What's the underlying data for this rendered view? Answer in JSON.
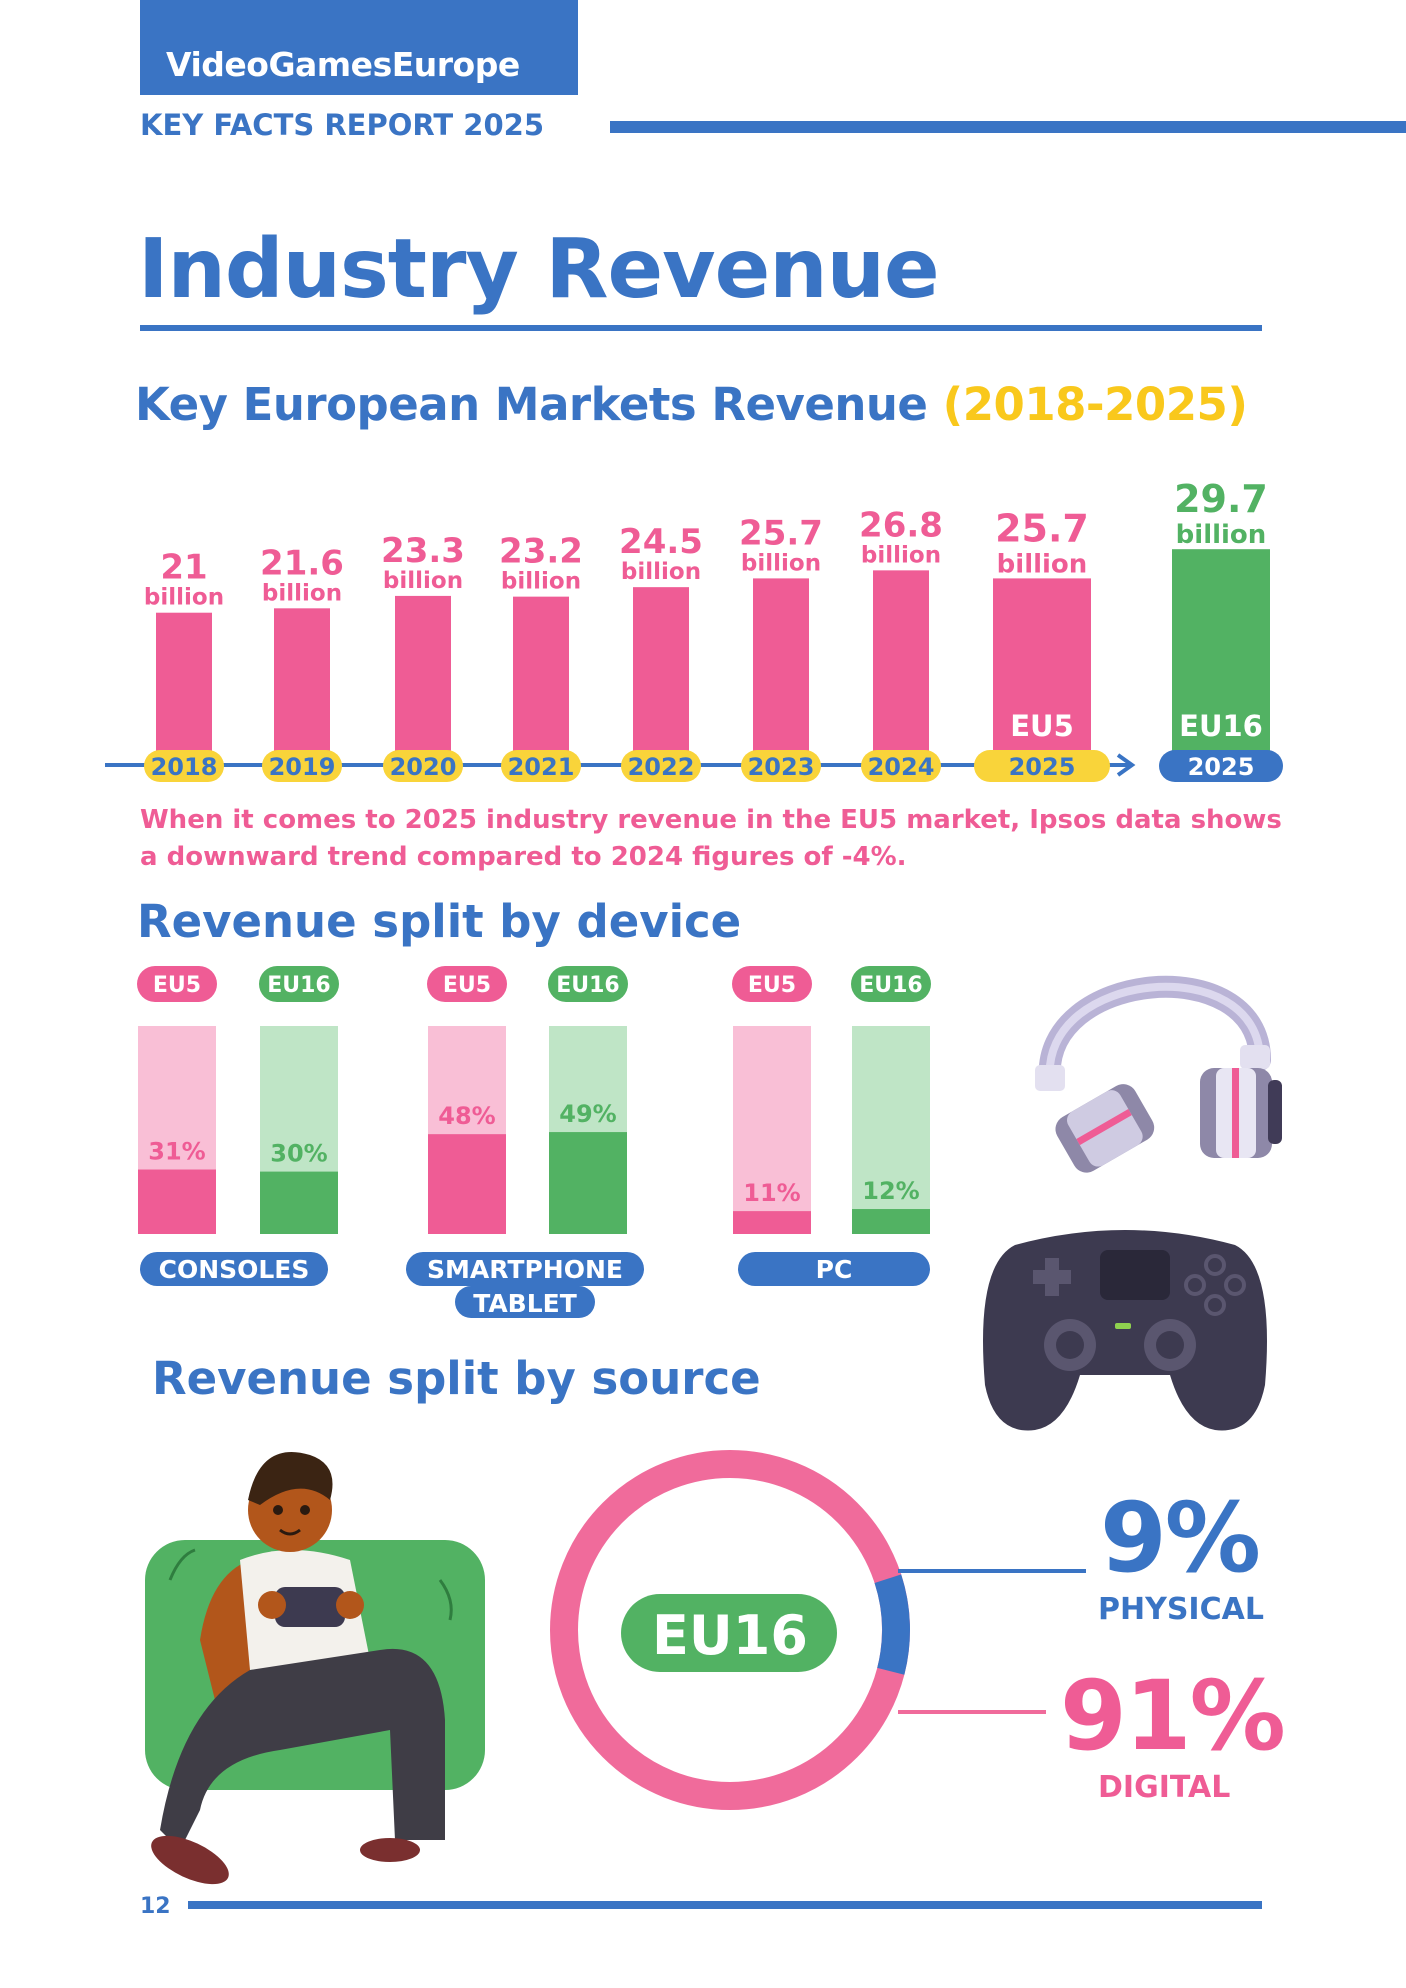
{
  "header": {
    "brand": "VideoGamesEurope",
    "report_title": "KEY FACTS REPORT 2025"
  },
  "page_title": "Industry Revenue",
  "markets_section": {
    "title": "Key European Markets Revenue",
    "title_years": "(2018-2025)"
  },
  "chart_data": [
    {
      "type": "bar",
      "title": "Key European Markets Revenue (2018-2025)",
      "categories": [
        "2018",
        "2019",
        "2020",
        "2021",
        "2022",
        "2023",
        "2024",
        "2025",
        "2025"
      ],
      "values": [
        21,
        21.6,
        23.3,
        23.2,
        24.5,
        25.7,
        26.8,
        25.7,
        29.7
      ],
      "value_labels": [
        "21",
        "21.6",
        "23.3",
        "23.2",
        "24.5",
        "25.7",
        "26.8",
        "25.7",
        "29.7"
      ],
      "unit_label": "billion",
      "bar_tags": [
        "",
        "",
        "",
        "",
        "",
        "",
        "",
        "EU5",
        "EU16"
      ],
      "bar_groups": [
        "EU5",
        "EU5",
        "EU5",
        "EU5",
        "EU5",
        "EU5",
        "EU5",
        "EU5",
        "EU16"
      ],
      "colors": {
        "EU5": "#ef5c95",
        "EU16": "#52b263",
        "axis": "#3a74c4",
        "year_pill": "#f9d43a",
        "year_pill_eu16": "#3a74c4"
      }
    },
    {
      "type": "bar",
      "title": "Revenue split by device",
      "categories": [
        "CONSOLES",
        "SMARTPHONE TABLET",
        "PC"
      ],
      "series": [
        {
          "name": "EU5",
          "values": [
            31,
            48,
            11
          ]
        },
        {
          "name": "EU16",
          "values": [
            30,
            49,
            12
          ]
        }
      ],
      "value_labels": {
        "EU5": [
          "31%",
          "48%",
          "11%"
        ],
        "EU16": [
          "30%",
          "49%",
          "12%"
        ]
      },
      "ylim": [
        0,
        100
      ],
      "colors": {
        "EU5": "#ef5c95",
        "EU5_track": "#f9bfd6",
        "EU16": "#52b263",
        "EU16_track": "#bfe5c6"
      }
    },
    {
      "type": "pie",
      "title": "Revenue split by source",
      "center_label": "EU16",
      "slices": [
        {
          "label": "PHYSICAL",
          "value": 9,
          "display": "9%",
          "color": "#3a74c4"
        },
        {
          "label": "DIGITAL",
          "value": 91,
          "display": "91%",
          "color": "#f06b9b"
        }
      ]
    }
  ],
  "market_note": "When it comes to 2025 industry revenue in the EU5 market, Ipsos data shows a downward trend compared to 2024 figures of -4%.",
  "device_section": {
    "title": "Revenue split by device",
    "category_labels": [
      "CONSOLES",
      "SMARTPHONE\nTABLET",
      "PC"
    ]
  },
  "source_section": {
    "title": "Revenue split by source"
  },
  "page_number": "12",
  "icons": [
    "headphones-icon",
    "gamepad-icon",
    "gamer-illustration"
  ]
}
